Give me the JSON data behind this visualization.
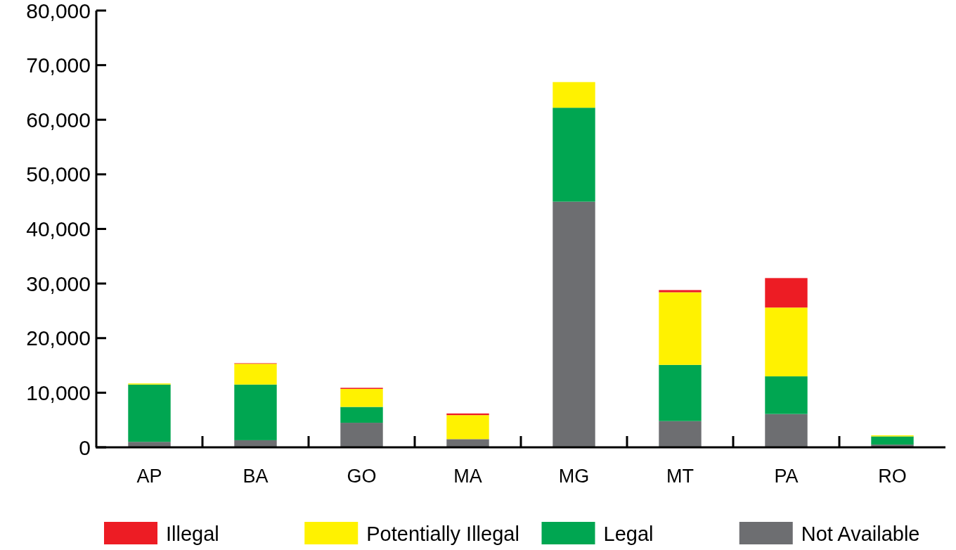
{
  "chart_data": {
    "type": "bar",
    "stacked": true,
    "categories": [
      "AP",
      "BA",
      "GO",
      "MA",
      "MG",
      "MT",
      "PA",
      "RO"
    ],
    "series": [
      {
        "name": "Not Available",
        "color": "#6d6e71",
        "values": [
          1000,
          1300,
          4500,
          1500,
          45000,
          4800,
          6100,
          500
        ]
      },
      {
        "name": "Legal",
        "color": "#00a651",
        "values": [
          10500,
          10200,
          2900,
          0,
          17200,
          10300,
          6900,
          1500
        ]
      },
      {
        "name": "Potentially Illegal",
        "color": "#fff200",
        "values": [
          200,
          3800,
          3300,
          4400,
          4700,
          13300,
          12600,
          200
        ]
      },
      {
        "name": "Illegal",
        "color": "#ed1c24",
        "values": [
          0,
          100,
          200,
          300,
          0,
          400,
          5400,
          0
        ]
      }
    ],
    "ylim": [
      0,
      80000
    ],
    "yticks": [
      {
        "value": 0,
        "label": "0"
      },
      {
        "value": 10000,
        "label": "10,000"
      },
      {
        "value": 20000,
        "label": "20,000"
      },
      {
        "value": 30000,
        "label": "30,000"
      },
      {
        "value": 40000,
        "label": "40,000"
      },
      {
        "value": 50000,
        "label": "50,000"
      },
      {
        "value": 60000,
        "label": "60,000"
      },
      {
        "value": 70000,
        "label": "70,000"
      },
      {
        "value": 80000,
        "label": "80,000"
      }
    ],
    "legend": "bottom"
  }
}
